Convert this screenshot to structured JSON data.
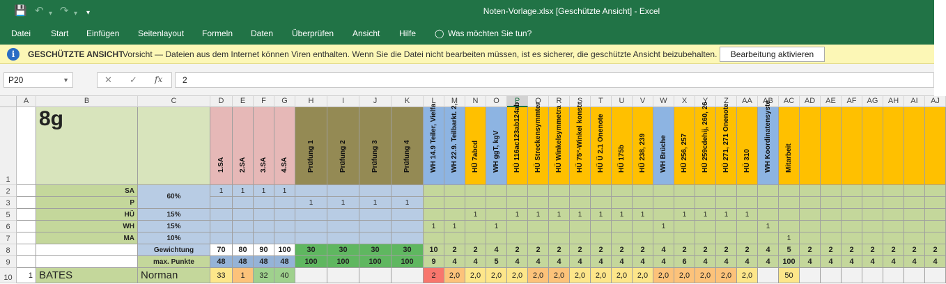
{
  "window": {
    "title": "Noten-Vorlage.xlsx  [Geschützte Ansicht]  -  Excel",
    "quick_access": {
      "save": "save-icon",
      "undo": "undo-icon",
      "redo": "redo-icon",
      "customize": "customize-icon"
    }
  },
  "menu": [
    "Datei",
    "Start",
    "Einfügen",
    "Seitenlayout",
    "Formeln",
    "Daten",
    "Überprüfen",
    "Ansicht",
    "Hilfe"
  ],
  "tell_me": "Was möchten Sie tun?",
  "protected_view": {
    "title": "GESCHÜTZTE ANSICHT",
    "message": "Vorsicht — Dateien aus dem Internet können Viren enthalten. Wenn Sie die Datei nicht bearbeiten müssen, ist es sicherer, die geschützte Ansicht beizubehalten.",
    "button": "Bearbeitung aktivieren"
  },
  "formula_bar": {
    "name_box": "P20",
    "fx": "fx",
    "value": "2"
  },
  "selected_column": "P",
  "columns": [
    {
      "l": "A",
      "w": 28
    },
    {
      "l": "B",
      "w": 146
    },
    {
      "l": "C",
      "w": 104
    },
    {
      "l": "D",
      "w": 32
    },
    {
      "l": "E",
      "w": 30
    },
    {
      "l": "F",
      "w": 30
    },
    {
      "l": "G",
      "w": 30
    },
    {
      "l": "H",
      "w": 46
    },
    {
      "l": "I",
      "w": 46
    },
    {
      "l": "J",
      "w": 46
    },
    {
      "l": "K",
      "w": 46
    },
    {
      "l": "L",
      "w": 30
    },
    {
      "l": "M",
      "w": 30
    },
    {
      "l": "N",
      "w": 30
    },
    {
      "l": "O",
      "w": 30
    },
    {
      "l": "P",
      "w": 30
    },
    {
      "l": "Q",
      "w": 30
    },
    {
      "l": "R",
      "w": 30
    },
    {
      "l": "S",
      "w": 30
    },
    {
      "l": "T",
      "w": 30
    },
    {
      "l": "U",
      "w": 30
    },
    {
      "l": "V",
      "w": 30
    },
    {
      "l": "W",
      "w": 30
    },
    {
      "l": "X",
      "w": 30
    },
    {
      "l": "Y",
      "w": 30
    },
    {
      "l": "Z",
      "w": 30
    },
    {
      "l": "AA",
      "w": 30
    },
    {
      "l": "AB",
      "w": 30
    },
    {
      "l": "AC",
      "w": 30
    },
    {
      "l": "AD",
      "w": 30
    },
    {
      "l": "AE",
      "w": 30
    },
    {
      "l": "AF",
      "w": 30
    },
    {
      "l": "AG",
      "w": 30
    },
    {
      "l": "AH",
      "w": 30
    },
    {
      "l": "AI",
      "w": 30
    },
    {
      "l": "AJ",
      "w": 30
    }
  ],
  "rows": [
    {
      "n": "1",
      "h": 112
    },
    {
      "n": "2",
      "h": 17
    },
    {
      "n": "3",
      "h": 17
    },
    {
      "n": "5",
      "h": 17
    },
    {
      "n": "6",
      "h": 17
    },
    {
      "n": "7",
      "h": 17
    },
    {
      "n": "8",
      "h": 17
    },
    {
      "n": "9",
      "h": 17
    },
    {
      "n": "10",
      "h": 22
    }
  ],
  "colors": {
    "green_light": "#d8e4bc",
    "green_mid": "#c4d79b",
    "blue_light": "#b8cce4",
    "blue_mid": "#95b3d7",
    "pink": "#e6b8b7",
    "olive": "#948a54",
    "orange": "#ffc000",
    "blue_col": "#8db4e2",
    "green_dark": "#5fb760",
    "yellow_cell": "#fde68a",
    "orange_cell": "#fcc27a",
    "red_cell": "#f8766d",
    "green_cell": "#9fd18d"
  },
  "sheet": {
    "class_name": "8g",
    "header_labels": {
      "D": "1.SA",
      "E": "2.SA",
      "F": "3.SA",
      "G": "4.SA",
      "H": "Prüfung 1",
      "I": "Prüfung 2",
      "J": "Prüfung 3",
      "K": "Prüfung 4",
      "L": "WH 14.9 Teiler, Vielfa",
      "M": "WH 22.9. Teilbarkt. 2,",
      "N": "HÜ 7abcd",
      "O": "WH ggT, kgV",
      "P": "HÜ 116ac123ab124ab",
      "Q": "HÜ Streckensymmter",
      "R": "HÜ Winkelsymmetra",
      "S": "HÜ 75°-Winkel konstr",
      "T": "HÜ Ü 2.1 Onenote",
      "U": "HÜ 175b",
      "V": "HÜ 238, 239",
      "W": "WH Brüche",
      "X": "HÜ 256, 257",
      "Y": "HÜ 259cdehij, 260, 26",
      "Z": "HÜ 271, 271 Onenote",
      "AA": "HÜ 310",
      "AB": "WH Koordinatensyste",
      "AC": "Mitarbeit"
    },
    "category_rows": [
      {
        "label": "SA",
        "marks": {
          "D": "1",
          "E": "1",
          "F": "1",
          "G": "1"
        }
      },
      {
        "label": "P",
        "marks": {
          "H": "1",
          "I": "1",
          "J": "1",
          "K": "1"
        }
      },
      {
        "label": "HÜ",
        "weight": "15%",
        "marks": {
          "N": "1",
          "P": "1",
          "Q": "1",
          "R": "1",
          "S": "1",
          "T": "1",
          "U": "1",
          "V": "1",
          "X": "1",
          "Y": "1",
          "Z": "1",
          "AA": "1"
        }
      },
      {
        "label": "WH",
        "weight": "15%",
        "marks": {
          "L": "1",
          "M": "1",
          "O": "1",
          "W": "1",
          "AB": "1"
        }
      },
      {
        "label": "MA",
        "weight": "10%",
        "marks": {
          "AC": "1"
        }
      }
    ],
    "sa_p_weight": "60%",
    "weight_label": "Gewichtung",
    "weights": {
      "D": "70",
      "E": "80",
      "F": "90",
      "G": "100",
      "H": "30",
      "I": "30",
      "J": "30",
      "K": "30",
      "L": "10",
      "M": "2",
      "N": "2",
      "O": "4",
      "P": "2",
      "Q": "2",
      "R": "2",
      "S": "2",
      "T": "2",
      "U": "2",
      "V": "2",
      "W": "4",
      "X": "2",
      "Y": "2",
      "Z": "2",
      "AA": "2",
      "AB": "4",
      "AC": "5",
      "AD": "2",
      "AE": "2",
      "AF": "2",
      "AG": "2",
      "AH": "2",
      "AI": "2",
      "AJ": "2"
    },
    "maxpoints_label": "max. Punkte",
    "max_points": {
      "D": "48",
      "E": "48",
      "F": "48",
      "G": "48",
      "H": "100",
      "I": "100",
      "J": "100",
      "K": "100",
      "L": "9",
      "M": "4",
      "N": "4",
      "O": "5",
      "P": "4",
      "Q": "4",
      "R": "4",
      "S": "4",
      "T": "4",
      "U": "4",
      "V": "4",
      "W": "4",
      "X": "6",
      "Y": "4",
      "Z": "4",
      "AA": "4",
      "AB": "4",
      "AC": "100",
      "AD": "4",
      "AE": "4",
      "AF": "4",
      "AG": "4",
      "AH": "4",
      "AI": "4",
      "AJ": "4"
    },
    "student": {
      "nr": "1",
      "last_name": "BATES",
      "first_name": "Norman",
      "scores": {
        "D": "33",
        "E": "1",
        "F": "32",
        "G": "40",
        "L": "2",
        "M": "2,0",
        "N": "2,0",
        "O": "2,0",
        "P": "2,0",
        "Q": "2,0",
        "R": "2,0",
        "S": "2,0",
        "T": "2,0",
        "U": "2,0",
        "V": "2,0",
        "W": "2,0",
        "X": "2,0",
        "Y": "2,0",
        "Z": "2,0",
        "AA": "2,0",
        "AC": "50"
      }
    }
  }
}
